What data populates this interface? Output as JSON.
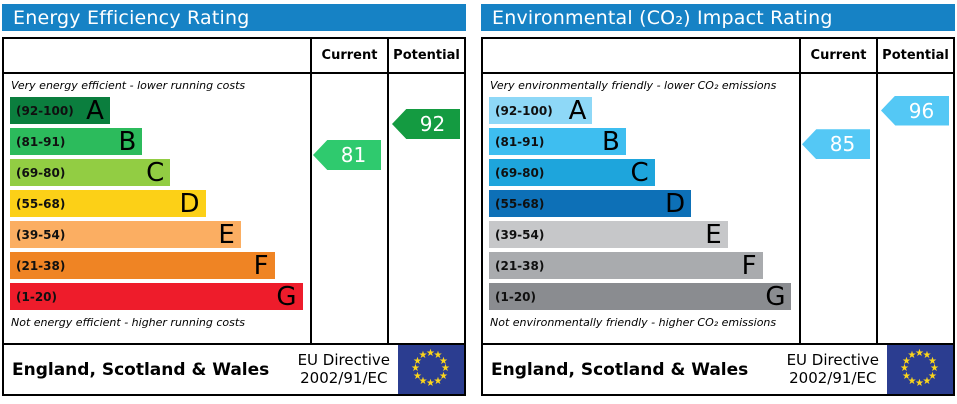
{
  "chart_data": [
    {
      "type": "epc-rating-bar",
      "panel": "energy",
      "title": "Energy Efficiency Rating",
      "header_color": "#1682c5",
      "columns": [
        "Current",
        "Potential"
      ],
      "top_note": "Very energy efficient - lower running costs",
      "bottom_note": "Not energy efficient - higher running costs",
      "bands": [
        {
          "letter": "A",
          "label": "(92-100)",
          "low": 92,
          "high": 100,
          "color": "#0b7e3e",
          "width_pct": 34
        },
        {
          "letter": "B",
          "label": "(81-91)",
          "low": 81,
          "high": 91,
          "color": "#2cbb5c",
          "width_pct": 45
        },
        {
          "letter": "C",
          "label": "(69-80)",
          "low": 69,
          "high": 80,
          "color": "#92cd43",
          "width_pct": 54.5
        },
        {
          "letter": "D",
          "label": "(55-68)",
          "low": 55,
          "high": 68,
          "color": "#fcd017",
          "width_pct": 66.5
        },
        {
          "letter": "E",
          "label": "(39-54)",
          "low": 39,
          "high": 54,
          "color": "#fbae62",
          "width_pct": 78.5
        },
        {
          "letter": "F",
          "label": "(21-38)",
          "low": 21,
          "high": 38,
          "color": "#ef8424",
          "width_pct": 90
        },
        {
          "letter": "G",
          "label": "(1-20)",
          "low": 1,
          "high": 20,
          "color": "#ee1c2b",
          "width_pct": 99.5
        }
      ],
      "current": {
        "value": 81,
        "color": "#2fca6e"
      },
      "potential": {
        "value": 92,
        "color": "#149b41"
      },
      "footer": {
        "region": "England, Scotland & Wales",
        "directive_line1": "EU Directive",
        "directive_line2": "2002/91/EC"
      }
    },
    {
      "type": "epc-rating-bar",
      "panel": "environmental",
      "title": "Environmental (CO₂) Impact Rating",
      "header_color": "#1682c5",
      "columns": [
        "Current",
        "Potential"
      ],
      "top_note": "Very environmentally friendly - lower CO₂ emissions",
      "bottom_note": "Not environmentally friendly - higher CO₂ emissions",
      "bands": [
        {
          "letter": "A",
          "label": "(92-100)",
          "low": 92,
          "high": 100,
          "color": "#8ed8f7",
          "width_pct": 34
        },
        {
          "letter": "B",
          "label": "(81-91)",
          "low": 81,
          "high": 91,
          "color": "#3ebef0",
          "width_pct": 45
        },
        {
          "letter": "C",
          "label": "(69-80)",
          "low": 69,
          "high": 80,
          "color": "#1ea5dc",
          "width_pct": 54.5
        },
        {
          "letter": "D",
          "label": "(55-68)",
          "low": 55,
          "high": 68,
          "color": "#0d70b7",
          "width_pct": 66.5
        },
        {
          "letter": "E",
          "label": "(39-54)",
          "low": 39,
          "high": 54,
          "color": "#c6c7c9",
          "width_pct": 78.5
        },
        {
          "letter": "F",
          "label": "(21-38)",
          "low": 21,
          "high": 38,
          "color": "#a9abae",
          "width_pct": 90
        },
        {
          "letter": "G",
          "label": "(1-20)",
          "low": 1,
          "high": 20,
          "color": "#8a8c90",
          "width_pct": 99.5
        }
      ],
      "current": {
        "value": 85,
        "color": "#54c8f5"
      },
      "potential": {
        "value": 96,
        "color": "#54c8f5"
      },
      "footer": {
        "region": "England, Scotland & Wales",
        "directive_line1": "EU Directive",
        "directive_line2": "2002/91/EC"
      }
    }
  ],
  "flag": {
    "blue": "#2b3d90",
    "star_color": "#fbd51b",
    "star_glyph": "★"
  }
}
